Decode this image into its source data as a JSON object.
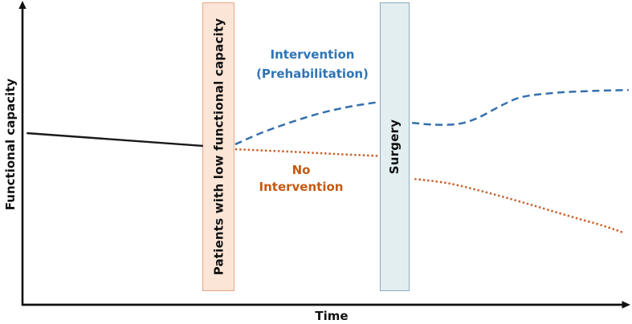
{
  "figure": {
    "description_visible_text_only": "",
    "background": "#ffffff"
  },
  "annotations": {
    "intervention": {
      "line1": "Intervention",
      "line2": "(Prehabilitation)",
      "color": "#2E75B6"
    },
    "no_intervention": {
      "line1": "No",
      "line2": "Intervention",
      "color": "#C55A11"
    }
  },
  "chart_data": {
    "type": "line",
    "title": "",
    "xlabel": "Time",
    "ylabel": "Functional capacity",
    "xlim": [
      0,
      100
    ],
    "ylim": [
      0,
      100
    ],
    "grid": false,
    "axis_ticks": "none",
    "legend_position": "inline-text-labels",
    "bands": [
      {
        "name": "patients-with-low-functional-capacity",
        "label": "Patients with low functional capacity",
        "x0": 29.6,
        "x1": 34.9,
        "fill": "#FBE5D6",
        "border": "#E9A687",
        "label_color": "#111111"
      },
      {
        "name": "surgery",
        "label": "Surgery",
        "x0": 58.8,
        "x1": 63.7,
        "fill": "#E3EEF1",
        "border": "#8EA9BD",
        "label_color": "#111111"
      }
    ],
    "series": [
      {
        "name": "baseline-low-capacity",
        "color": "#1A1A1A",
        "style": "solid",
        "smooth": false,
        "width": 2.4,
        "segments": [
          [
            [
              0.7,
              57.0
            ],
            [
              29.7,
              52.8
            ]
          ]
        ]
      },
      {
        "name": "intervention-prehabilitation",
        "color": "#336FAD",
        "style": "dashed",
        "smooth": true,
        "width": 2.5,
        "segments": [
          [
            [
              35.0,
              53.3
            ],
            [
              39.2,
              57.0
            ],
            [
              43.9,
              60.4
            ],
            [
              49.1,
              63.6
            ],
            [
              53.8,
              65.7
            ],
            [
              58.5,
              67.2
            ]
          ],
          [
            [
              64.1,
              60.4
            ],
            [
              67.6,
              59.8
            ],
            [
              71.6,
              60.0
            ],
            [
              74.9,
              62.0
            ],
            [
              78.9,
              66.2
            ],
            [
              82.2,
              68.9
            ],
            [
              87.4,
              70.2
            ],
            [
              92.7,
              70.8
            ],
            [
              99.7,
              71.2
            ]
          ]
        ]
      },
      {
        "name": "no-intervention",
        "color": "#C8602A",
        "style": "dotted",
        "smooth": true,
        "width": 2.5,
        "segments": [
          [
            [
              35.0,
              51.7
            ],
            [
              43.9,
              50.9
            ],
            [
              51.8,
              50.1
            ],
            [
              58.5,
              49.5
            ]
          ],
          [
            [
              64.5,
              41.9
            ],
            [
              70.3,
              40.4
            ],
            [
              76.9,
              37.2
            ],
            [
              83.5,
              33.5
            ],
            [
              90.1,
              29.6
            ],
            [
              95.4,
              26.6
            ],
            [
              98.8,
              24.3
            ]
          ]
        ]
      }
    ]
  }
}
